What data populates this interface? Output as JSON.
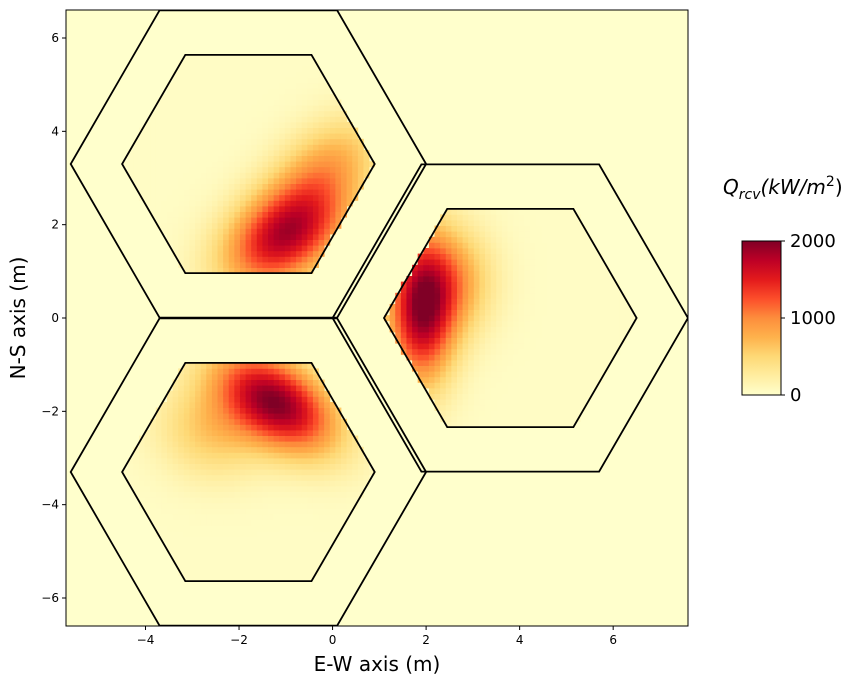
{
  "chart_data": {
    "type": "heatmap",
    "title": "",
    "xlabel": "E-W axis (m)",
    "ylabel": "N-S axis (m)",
    "xlim": [
      -5.7,
      7.6
    ],
    "ylim": [
      -6.6,
      6.6
    ],
    "xticks": [
      -4,
      -2,
      0,
      2,
      4,
      6
    ],
    "yticks": [
      -6,
      -4,
      -2,
      0,
      2,
      4,
      6
    ],
    "xtick_labels": [
      "−4",
      "−2",
      "0",
      "2",
      "4",
      "6"
    ],
    "ytick_labels": [
      "−6",
      "−4",
      "−2",
      "0",
      "2",
      "4",
      "6"
    ],
    "colormap": "YlOrRd",
    "colorbar": {
      "title": "Q_rcv(kW/m^2)",
      "title_base": "Q",
      "title_subscript": "rcv",
      "title_open": "(kW/m",
      "title_exponent": "2",
      "title_close": ")",
      "min": 0,
      "max": 2000,
      "ticks": [
        0,
        1000,
        2000
      ],
      "tick_labels": [
        "0",
        "1000",
        "2000"
      ]
    },
    "colors": {
      "background": "#ffffcc",
      "outline": "#000000",
      "low": "#ffffcc",
      "high": "#800026"
    },
    "receivers": [
      {
        "name": "top-left",
        "center": [
          -1.8,
          3.3
        ],
        "outer_radius": 3.8,
        "inner_radius": 2.7,
        "hotspots": [
          {
            "x": -1.0,
            "y": 1.8,
            "sx": 1.0,
            "sy": 0.65,
            "angle": 35,
            "peak": 1750
          },
          {
            "x": -0.1,
            "y": 3.3,
            "sx": 0.9,
            "sy": 0.6,
            "angle": 40,
            "peak": 650
          }
        ]
      },
      {
        "name": "bottom-left",
        "center": [
          -1.8,
          -3.3
        ],
        "outer_radius": 3.8,
        "inner_radius": 2.7,
        "hotspots": [
          {
            "x": -1.2,
            "y": -1.8,
            "sx": 1.0,
            "sy": 0.6,
            "angle": -35,
            "peak": 1900
          },
          {
            "x": -2.6,
            "y": -2.4,
            "sx": 0.8,
            "sy": 0.7,
            "angle": -20,
            "peak": 550
          }
        ]
      },
      {
        "name": "right",
        "center": [
          3.8,
          0.0
        ],
        "outer_radius": 3.8,
        "inner_radius": 2.7,
        "hotspots": [
          {
            "x": 1.9,
            "y": 0.2,
            "sx": 0.5,
            "sy": 1.1,
            "angle": 0,
            "peak": 1800
          },
          {
            "x": 2.6,
            "y": 0.8,
            "sx": 0.6,
            "sy": 0.8,
            "angle": 0,
            "peak": 700
          }
        ]
      }
    ]
  }
}
